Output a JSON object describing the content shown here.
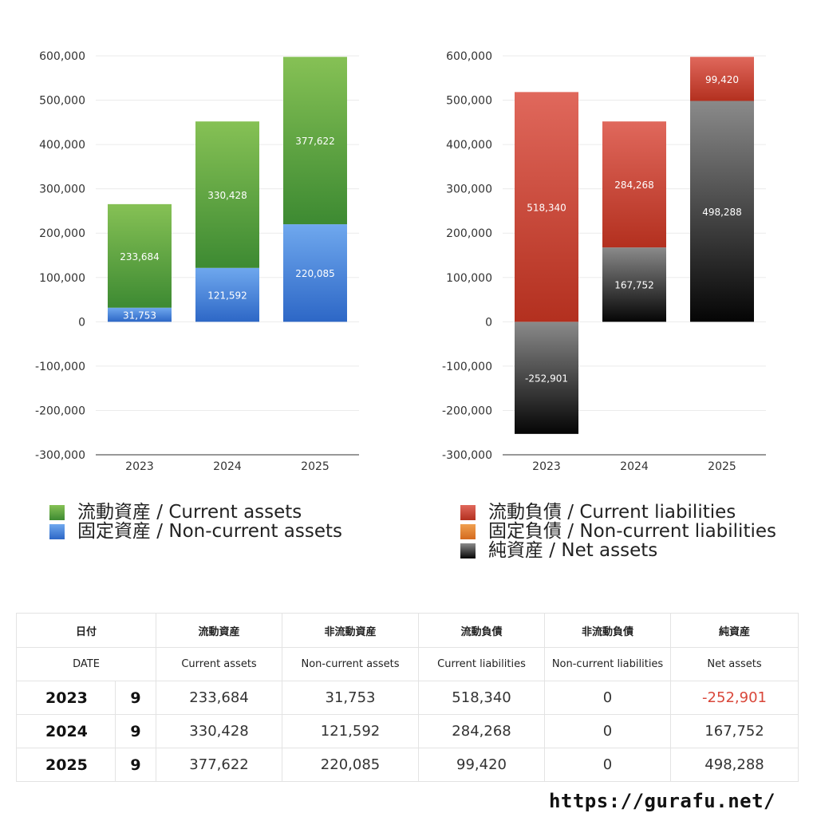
{
  "chart_data": [
    {
      "type": "bar",
      "stacked": true,
      "categories": [
        "2023",
        "2024",
        "2025"
      ],
      "ylim": [
        -300000,
        600000
      ],
      "ticks": [
        "600,000",
        "500,000",
        "400,000",
        "300,000",
        "200,000",
        "100,000",
        "0",
        "-100,000",
        "-200,000",
        "-300,000"
      ],
      "tick_values": [
        600000,
        500000,
        400000,
        300000,
        200000,
        100000,
        0,
        -100000,
        -200000,
        -300000
      ],
      "grid": true,
      "series": [
        {
          "name": "固定資産 / Non-current assets",
          "values": [
            31753,
            121592,
            220085
          ],
          "color_top": "#6fa8ee",
          "color_bottom": "#2d67c6"
        },
        {
          "name": "流動資産 / Current assets",
          "values": [
            233684,
            330428,
            377622
          ],
          "color_top": "#86c155",
          "color_bottom": "#3d8a32"
        }
      ],
      "data_labels": [
        [
          "31,753",
          "121,592",
          "220,085"
        ],
        [
          "233,684",
          "330,428",
          "377,622"
        ]
      ]
    },
    {
      "type": "bar",
      "stacked": true,
      "categories": [
        "2023",
        "2024",
        "2025"
      ],
      "ylim": [
        -300000,
        600000
      ],
      "ticks": [
        "600,000",
        "500,000",
        "400,000",
        "300,000",
        "200,000",
        "100,000",
        "0",
        "-100,000",
        "-200,000",
        "-300,000"
      ],
      "tick_values": [
        600000,
        500000,
        400000,
        300000,
        200000,
        100000,
        0,
        -100000,
        -200000,
        -300000
      ],
      "grid": true,
      "series": [
        {
          "name": "純資産 / Net assets",
          "values": [
            -252901,
            167752,
            498288
          ],
          "color_top": "#8a8a8a",
          "color_bottom": "#050505"
        },
        {
          "name": "固定負債 / Non-current liabilities",
          "values": [
            0,
            0,
            0
          ],
          "color_top": "#f0a050",
          "color_bottom": "#d46a1e"
        },
        {
          "name": "流動負債 / Current liabilities",
          "values": [
            518340,
            284268,
            99420
          ],
          "color_top": "#e0685c",
          "color_bottom": "#b3301f"
        }
      ],
      "data_labels": [
        [
          "-252,901",
          "167,752",
          "498,288"
        ],
        [
          "",
          "",
          ""
        ],
        [
          "518,340",
          "284,268",
          "99,420"
        ]
      ]
    }
  ],
  "legend_left": [
    {
      "label": "流動資産 / Current assets",
      "color": "#4a9a3a"
    },
    {
      "label": "固定資産 / Non-current assets",
      "color": "#3d7fd6"
    }
  ],
  "legend_right": [
    {
      "label": "流動負債 / Current liabilities",
      "color": "#c8402f"
    },
    {
      "label": "固定負債 / Non-current liabilities",
      "color": "#e5832f"
    },
    {
      "label": "純資産 / Net assets",
      "color": "#222222"
    }
  ],
  "table": {
    "header_jp": [
      "日付",
      "流動資産",
      "非流動資産",
      "流動負債",
      "非流動負債",
      "純資産"
    ],
    "header_en": [
      "DATE",
      "Current assets",
      "Non-current assets",
      "Current liabilities",
      "Non-current liabilities",
      "Net assets"
    ],
    "rows": [
      {
        "year": "2023",
        "month": "9",
        "cells": [
          "233,684",
          "31,753",
          "518,340",
          "0",
          "-252,901"
        ]
      },
      {
        "year": "2024",
        "month": "9",
        "cells": [
          "330,428",
          "121,592",
          "284,268",
          "0",
          "167,752"
        ]
      },
      {
        "year": "2025",
        "month": "9",
        "cells": [
          "377,622",
          "220,085",
          "99,420",
          "0",
          "498,288"
        ]
      }
    ],
    "negative_color": "#d9473a"
  },
  "site": "https://gurafu.net/"
}
